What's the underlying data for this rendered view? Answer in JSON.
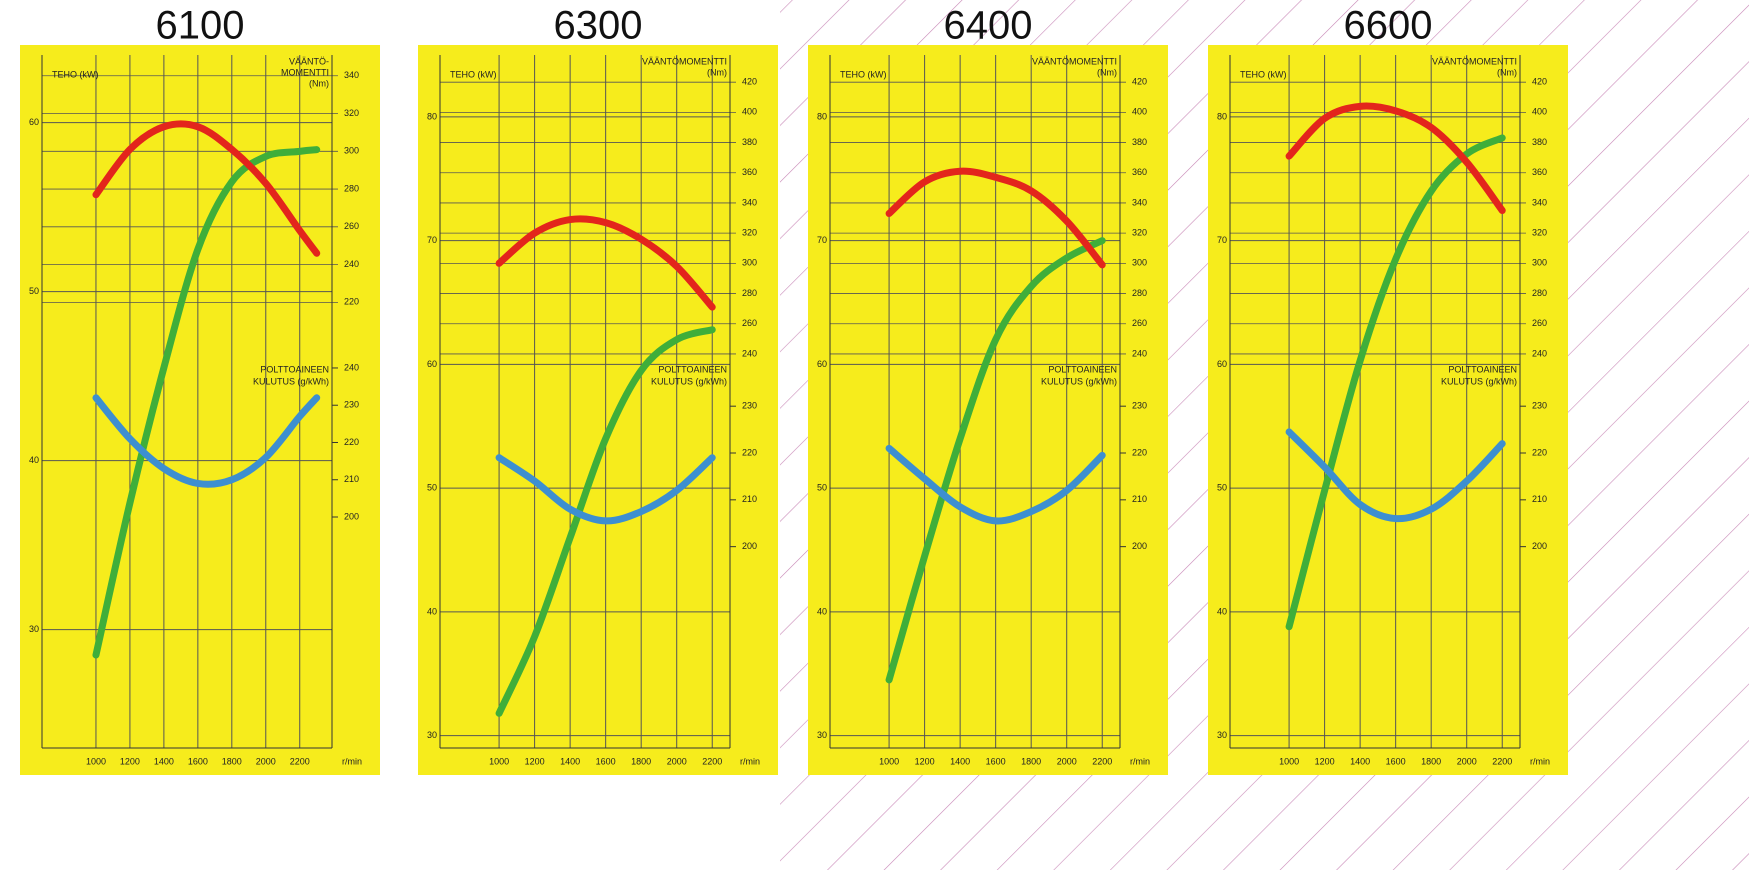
{
  "chart_data": [
    {
      "type": "line",
      "title": "6100",
      "xlabel": "r/min",
      "ylabel": "TEHO (kW)",
      "y2label": [
        "VÄÄNTÖ-",
        "MOMENTTI",
        "(Nm)"
      ],
      "y3label": [
        "POLTTOAINEEN",
        "KULUTUS (g/kWh)"
      ],
      "x": [
        1000,
        1200,
        1400,
        1600,
        1800,
        2000,
        2200,
        2300
      ],
      "xlim": [
        800,
        2390
      ],
      "xticks": [
        1000,
        1200,
        1400,
        1600,
        1800,
        2000,
        2200
      ],
      "ylim": [
        23,
        64
      ],
      "yticks": [
        30,
        40,
        50,
        60
      ],
      "y2lim": [
        -16,
        351
      ],
      "y2ticks": [
        220,
        240,
        260,
        280,
        300,
        320,
        340
      ],
      "y3lim": [
        138,
        324
      ],
      "y3ticks": [
        200,
        210,
        220,
        230,
        240
      ],
      "grid": true,
      "series": [
        {
          "color": "#3fae3a",
          "axis": "y",
          "values": [
            28.5,
            37.5,
            45.5,
            52.5,
            56.5,
            58,
            58.3,
            58.4
          ]
        },
        {
          "color": "#e3251c",
          "axis": "y2",
          "values": [
            277,
            301,
            313,
            313,
            301,
            283,
            258,
            246
          ]
        },
        {
          "color": "#3d8fd0",
          "axis": "y3",
          "values": [
            232,
            221,
            213,
            209,
            210,
            216,
            227,
            232
          ]
        }
      ]
    },
    {
      "type": "line",
      "title": "6300",
      "xlabel": "r/min",
      "ylabel": "TEHO (kW)",
      "y2label": [
        "VÄÄNTÖMOMENTTI",
        "(Nm)"
      ],
      "y3label": [
        "POLTTOAINEEN",
        "KULUTUS (g/kWh)"
      ],
      "x": [
        1000,
        1200,
        1400,
        1600,
        1800,
        2000,
        2200
      ],
      "xlim": [
        780,
        2300
      ],
      "xticks": [
        1000,
        1200,
        1400,
        1600,
        1800,
        2000,
        2200
      ],
      "ylim": [
        29,
        85
      ],
      "yticks": [
        30,
        40,
        50,
        60,
        70,
        80
      ],
      "y2lim": [
        -21,
        438
      ],
      "y2ticks": [
        240,
        260,
        280,
        300,
        320,
        340,
        360,
        380,
        400,
        420
      ],
      "y3lim": [
        157,
        305
      ],
      "y3ticks": [
        200,
        210,
        220,
        230
      ],
      "grid": true,
      "series": [
        {
          "color": "#3fae3a",
          "axis": "y",
          "values": [
            31.8,
            38,
            46,
            54,
            59.5,
            62,
            62.8
          ]
        },
        {
          "color": "#e3251c",
          "axis": "y2",
          "values": [
            300,
            320,
            329,
            327,
            316,
            298,
            271
          ]
        },
        {
          "color": "#3d8fd0",
          "axis": "y3",
          "values": [
            219,
            214,
            208,
            205.5,
            207.5,
            212,
            219
          ]
        }
      ]
    },
    {
      "type": "line",
      "title": "6400",
      "xlabel": "r/min",
      "ylabel": "TEHO (kW)",
      "y2label": [
        "VÄÄNTÖMOMENTTI",
        "(Nm)"
      ],
      "y3label": [
        "POLTTOAINEEN",
        "KULUTUS (g/kWh)"
      ],
      "x": [
        1000,
        1200,
        1400,
        1600,
        1800,
        2000,
        2200
      ],
      "xlim": [
        780,
        2300
      ],
      "xticks": [
        1000,
        1200,
        1400,
        1600,
        1800,
        2000,
        2200
      ],
      "ylim": [
        29,
        85
      ],
      "yticks": [
        30,
        40,
        50,
        60,
        70,
        80
      ],
      "y2lim": [
        -21,
        438
      ],
      "y2ticks": [
        240,
        260,
        280,
        300,
        320,
        340,
        360,
        380,
        400,
        420
      ],
      "y3lim": [
        157,
        305
      ],
      "y3ticks": [
        200,
        210,
        220,
        230
      ],
      "grid": true,
      "series": [
        {
          "color": "#3fae3a",
          "axis": "y",
          "values": [
            34.5,
            44.5,
            54,
            62,
            66.3,
            68.6,
            70
          ]
        },
        {
          "color": "#e3251c",
          "axis": "y2",
          "values": [
            333,
            354,
            361,
            357,
            348,
            328,
            299
          ]
        },
        {
          "color": "#3d8fd0",
          "axis": "y3",
          "values": [
            221,
            214.5,
            208.5,
            205.5,
            207.5,
            212,
            219.5
          ]
        }
      ]
    },
    {
      "type": "line",
      "title": "6600",
      "xlabel": "r/min",
      "ylabel": "TEHO (kW)",
      "y2label": [
        "VÄÄNTÖMOMENTTI",
        "(Nm)"
      ],
      "y3label": [
        "POLTTOAINEEN",
        "KULUTUS (g/kWh)"
      ],
      "x": [
        1000,
        1200,
        1400,
        1600,
        1800,
        2000,
        2200
      ],
      "xlim": [
        780,
        2300
      ],
      "xticks": [
        1000,
        1200,
        1400,
        1600,
        1800,
        2000,
        2200
      ],
      "ylim": [
        29,
        85
      ],
      "yticks": [
        30,
        40,
        50,
        60,
        70,
        80
      ],
      "y2lim": [
        -21,
        438
      ],
      "y2ticks": [
        240,
        260,
        280,
        300,
        320,
        340,
        360,
        380,
        400,
        420
      ],
      "y3lim": [
        157,
        305
      ],
      "y3ticks": [
        200,
        210,
        220,
        230
      ],
      "grid": true,
      "series": [
        {
          "color": "#3fae3a",
          "axis": "y",
          "values": [
            38.8,
            49.8,
            60.3,
            68.5,
            74,
            77,
            78.3
          ]
        },
        {
          "color": "#e3251c",
          "axis": "y2",
          "values": [
            371,
            396,
            404,
            401,
            390,
            367,
            335
          ]
        },
        {
          "color": "#3d8fd0",
          "axis": "y3",
          "values": [
            224.5,
            217,
            209,
            206,
            208,
            214,
            222
          ]
        }
      ]
    }
  ]
}
